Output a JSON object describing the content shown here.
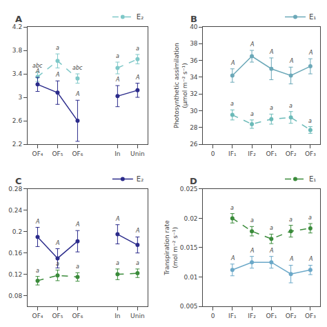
{
  "chart_data": [
    {
      "type": "line",
      "title": "A",
      "categories": [
        "OF₄",
        "OF₅",
        "OF₆",
        null,
        "In",
        "Unin"
      ],
      "ylim": [
        2.2,
        4.2
      ],
      "yticks": [
        2.2,
        2.6,
        3,
        3.4,
        3.8,
        4.2
      ],
      "grid": false,
      "legend": "upper right",
      "series": [
        {
          "name": "E₂",
          "color": "#7EC8C8",
          "line_style": "dashed",
          "marker": "circle",
          "values": [
            3.35,
            3.62,
            3.32,
            null,
            3.5,
            3.65
          ],
          "error": [
            0.08,
            0.12,
            0.08,
            null,
            0.1,
            0.08
          ],
          "annotations": [
            "abc",
            "a",
            "abc",
            null,
            "a",
            "a"
          ]
        },
        {
          "color": "#2B2B8B",
          "line_style": "solid",
          "marker": "circle",
          "values": [
            3.22,
            3.08,
            2.6,
            null,
            3.02,
            3.12
          ],
          "error": [
            0.12,
            0.2,
            0.35,
            null,
            0.18,
            0.12
          ],
          "annotations": [
            "A",
            "A",
            "A",
            null,
            "A",
            "A"
          ]
        }
      ]
    },
    {
      "type": "line",
      "title": "B",
      "categories": [
        "0",
        "IF₁",
        "IF₂",
        "OF₁",
        "OF₂",
        "OF₃"
      ],
      "ylabel": "Photosynthetic assimilation\n(μmol m⁻² s⁻¹)",
      "ylim": [
        26,
        40
      ],
      "yticks": [
        26,
        28,
        30,
        32,
        34,
        36,
        38,
        40
      ],
      "grid": false,
      "legend": "upper right",
      "series": [
        {
          "name": "E₁",
          "color": "#6BA8B8",
          "line_style": "solid",
          "marker": "circle",
          "values": [
            null,
            34.2,
            36.5,
            35.0,
            34.2,
            35.3
          ],
          "error": [
            null,
            0.8,
            0.7,
            1.3,
            1.0,
            0.9
          ],
          "annotations": [
            null,
            "A",
            "A",
            "A",
            "A",
            "A"
          ]
        },
        {
          "color": "#6BBAB8",
          "line_style": "dashed",
          "marker": "circle",
          "values": [
            null,
            29.5,
            28.4,
            29.0,
            29.2,
            27.7
          ],
          "error": [
            null,
            0.6,
            0.5,
            0.6,
            0.7,
            0.4
          ],
          "annotations": [
            null,
            "a",
            "a",
            "a",
            "a",
            "a"
          ]
        }
      ]
    },
    {
      "type": "line",
      "title": "C",
      "categories": [
        "OF₄",
        "OF₅",
        "OF₆",
        null,
        "In",
        "Unin"
      ],
      "ylim": [
        0.06,
        0.28
      ],
      "yticks": [
        0.08,
        0.12,
        0.16,
        0.2,
        0.24,
        0.28
      ],
      "grid": false,
      "legend": "upper right",
      "series": [
        {
          "name": "E₂",
          "color": "#2B2B8B",
          "line_style": "solid",
          "marker": "circle",
          "values": [
            0.19,
            0.15,
            0.182,
            null,
            0.195,
            0.175
          ],
          "error": [
            0.018,
            0.018,
            0.02,
            null,
            0.018,
            0.015
          ],
          "annotations": [
            "A",
            "A",
            "A",
            null,
            "A",
            "A"
          ]
        },
        {
          "color": "#3A8B3A",
          "line_style": "dashed",
          "marker": "circle",
          "values": [
            0.108,
            0.118,
            0.115,
            null,
            0.12,
            0.122
          ],
          "error": [
            0.008,
            0.01,
            0.008,
            null,
            0.01,
            0.008
          ],
          "annotations": [
            "a",
            "a",
            "a",
            null,
            "a",
            "a"
          ]
        }
      ]
    },
    {
      "type": "line",
      "title": "D",
      "categories": [
        "0",
        "IF₁",
        "IF₂",
        "OF₁",
        "OF₂",
        "OF₃"
      ],
      "ylabel": "Transpiration rate\n(mol m⁻² s⁻¹)",
      "ylim": [
        0.005,
        0.025
      ],
      "yticks": [
        0.005,
        0.01,
        0.015,
        0.02,
        0.025
      ],
      "grid": false,
      "legend": "upper right",
      "series": [
        {
          "name": "E₁",
          "color": "#3A8B3A",
          "line_style": "dashed",
          "marker": "circle",
          "values": [
            null,
            0.02,
            0.0178,
            0.0165,
            0.0178,
            0.0183
          ],
          "error": [
            null,
            0.0008,
            0.0008,
            0.0008,
            0.001,
            0.0008
          ],
          "annotations": [
            null,
            "a",
            "a",
            "a",
            "a",
            "a"
          ]
        },
        {
          "color": "#6BA8C8",
          "line_style": "solid",
          "marker": "circle",
          "values": [
            null,
            0.0112,
            0.0125,
            0.0125,
            0.0105,
            0.0112
          ],
          "error": [
            null,
            0.001,
            0.001,
            0.001,
            0.0015,
            0.0008
          ],
          "annotations": [
            null,
            "A",
            "A",
            "A",
            "A",
            "A"
          ]
        }
      ]
    }
  ]
}
